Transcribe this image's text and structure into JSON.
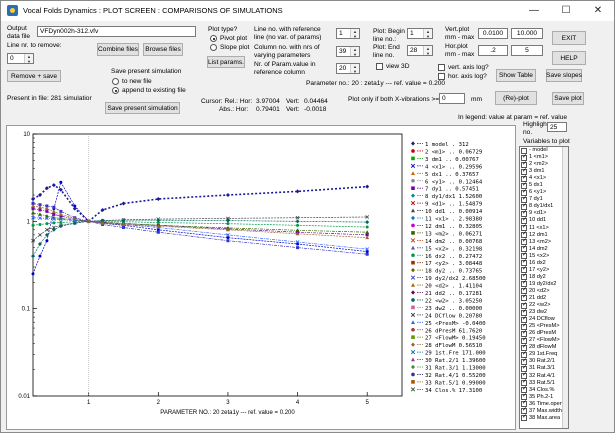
{
  "window": {
    "title": "Vocal Folds Dynamics : PLOT SCREEN : COMPARISONS OF SIMULATIONS"
  },
  "output": {
    "label": "Output data file",
    "value": "VFDyn002h-312.vfv"
  },
  "remove": {
    "label": "Line nr. to remove:",
    "value": "0",
    "button": "Remove + save"
  },
  "present_in_file": "Present in file: 281 simulatior",
  "buttons": {
    "combine": "Combine files",
    "browse": "Browse files",
    "list_params": "List params.",
    "save_present": "Save present simulation",
    "show_table": "Show Table",
    "replot": "(Re)-plot",
    "exit": "EXIT",
    "help": "HELP",
    "save_slopes": "Save slopes",
    "save_plot": "Save plot"
  },
  "save_sim": {
    "label": "Save present simulation",
    "opt1": "to new file",
    "opt2": "append to existing file"
  },
  "plot_type": {
    "label": "Plot type?",
    "opt1": "Pivot plot",
    "opt2": "Slope plot"
  },
  "fields": {
    "line_ref_label": "Line no. with reference line (no var. of params)",
    "line_ref_value": "1",
    "col_nrs_label": "Column no. with nrs of varying parameters",
    "col_nrs_value": "39",
    "nr_param_label": "Nr. of Param.value in reference column",
    "nr_param_value": "20",
    "plot_begin_label": "Plot: Begin line no.:",
    "plot_begin_value": "1",
    "plot_end_label": "Plot: End line no.",
    "plot_end_value": "28",
    "vert_plot_label": "Vert.plot mm - max",
    "vert_min": "0.0100",
    "vert_max": "10.000",
    "hor_plot_label": "Hor.plot mm - max",
    "hor_min": ".2",
    "hor_max": "5",
    "view3d": "view 3D",
    "vert_log": "vert. axis log?",
    "hor_log": "hor. axis log?",
    "plot_only_label": "Plot only if both X-vibrations >=",
    "plot_only_value": "0",
    "plot_only_unit": "mm"
  },
  "param_info": "Parameter no.: 20 : zeta1y   --- ref. value =  0.200",
  "cursor": {
    "rel_label": "Cursor: Rel.: Hor:",
    "rel_hor": "3.97004",
    "rel_vert_label": "Vert:",
    "rel_vert": "0.04464",
    "abs_label": "Abs.: Hor:",
    "abs_hor": "0.79401",
    "abs_vert_label": "Vert:",
    "abs_vert": "-0.0018"
  },
  "legend_note": "In legend: value at param = ref. value",
  "highlight": {
    "label": "Highlight no.",
    "value": "25"
  },
  "vars_label": "Variables to plot",
  "variables": [
    "- model",
    "1 <m1>",
    "2 <m2>",
    "3 dm1",
    "4 <x1>",
    "5 dx1",
    "6 <y1>",
    "7 dy1",
    "8 dy1/dx1",
    "9 <d1>",
    "10 dd1",
    "11 <x1>",
    "12 dm1",
    "13 <m2>",
    "14 dm2",
    "15 <x2>",
    "16 dx2",
    "17 <y2>",
    "18 dy2",
    "19 dy2/dx2",
    "20 <d2>",
    "21 dd2",
    "22 <w2>",
    "23 dw2",
    "24 DCflow",
    "25 <PresM>",
    "26 dPresM",
    "27 <FlowM>",
    "28 dFlowM",
    "29 1st.Freq",
    "30 Rat.2/1",
    "31 Rat.3/1",
    "32 Rat.4/1",
    "33 Rat.5/1",
    "34 Clos.%",
    "35 Ph.2-1",
    "36 Time.open",
    "37 Max.width",
    "38 Max.area"
  ],
  "variables_checked": [
    false,
    true,
    true,
    true,
    true,
    true,
    true,
    true,
    true,
    true,
    true,
    true,
    true,
    true,
    true,
    true,
    true,
    true,
    true,
    true,
    true,
    true,
    true,
    true,
    true,
    true,
    true,
    true,
    true,
    true,
    true,
    true,
    true,
    true,
    true,
    true,
    true,
    true,
    true
  ],
  "legend": [
    "1 model  .   312",
    "2 <m1> .. 0.06729",
    "3 dm1  .. 0.00767",
    "4 <x1> .. 0.29596",
    "5 dx1  .. 0.37657",
    "6 <y1> .. 0.12464",
    "7 dy1  .. 0.57451",
    "8 dy1/dx1 1.52600",
    "9 <d1> .. 1.54879",
    "10 dd1 .. 0.00914",
    "11 <x1> . 2.98380",
    "12 dm1 .. 0.32805",
    "13 <m2> . 0.06271",
    "14 dm2 .. 0.00768",
    "15 <x2> . 0.32198",
    "16 dx2 .. 0.27472",
    "17 <y2> . 3.08448",
    "18 dy2 .. 0.73765",
    "19 dy2/dx2 2.68500",
    "20 <d2> . 1.41104",
    "21 dd2 .. 0.17281",
    "22 <w2> . 3.05250",
    "23 dw2 .. 0.00000",
    "24 DCflow  0.20780",
    "25 <PresM> -0.0400",
    "26 dPresM  61.7620",
    "27 <FlowM> 0.19450",
    "28 dFlowM  0.56510",
    "29 1st.Fre 171.000",
    "30 Rat.2/1 1.39600",
    "31 Rat.3/1 1.13000",
    "32 Rat.4/1 0.55200",
    "33 Rat.5/1 0.99000",
    "34 Clos.%  17.3100"
  ],
  "legend_colors": [
    "#222266",
    "#cc0000",
    "#00aa00",
    "#0000cc",
    "#cc6600",
    "#888888",
    "#7700aa",
    "#008888",
    "#aa0000",
    "#444444",
    "#0077cc",
    "#cc00cc",
    "#336600",
    "#cc3300",
    "#555599",
    "#009944",
    "#993300",
    "#666600",
    "#3333cc",
    "#aa6600",
    "#660066",
    "#006666",
    "#cc6699",
    "#333333",
    "#3366ff",
    "#aa3333",
    "#669900",
    "#996633",
    "#0066aa",
    "#884488",
    "#448844",
    "#333399",
    "#aa5500",
    "#225522"
  ],
  "chart_data": {
    "type": "line",
    "xlabel": "PARAMETER NO.: 20   zeta1y      --- ref. value =    0.200",
    "ylabel": "",
    "x": [
      0.2,
      0.3,
      0.4,
      0.5,
      0.6,
      0.8,
      1.0,
      1.2,
      1.5,
      2.0,
      3.0,
      4.0,
      5.0
    ],
    "x_ticks": [
      "1",
      "2",
      "3",
      "4",
      "5"
    ],
    "y_ticks": [
      "10",
      "1",
      "0.1",
      "0.01"
    ],
    "xlim": [
      0.2,
      5.5
    ],
    "ylim": [
      0.01,
      10
    ],
    "log_y": true,
    "series": [
      {
        "name": "1 model",
        "values": [
          1.8,
          2.0,
          2.4,
          2.6,
          2.3,
          1.4,
          1.0,
          1.35,
          1.6,
          1.8,
          2.0,
          2.2,
          2.5
        ]
      },
      {
        "name": "11 <x1>",
        "values": [
          0.25,
          0.4,
          0.6,
          1.4,
          2.8,
          1.5,
          1.0,
          0.95,
          0.9,
          0.8,
          0.65,
          0.55,
          0.45
        ]
      },
      {
        "name": "3 dm1",
        "values": [
          1.4,
          1.35,
          1.3,
          1.2,
          1.15,
          1.05,
          1.0,
          0.97,
          0.94,
          0.9,
          0.82,
          0.75,
          0.7
        ]
      },
      {
        "name": "7 dy1",
        "values": [
          0.6,
          0.7,
          0.8,
          0.85,
          0.9,
          0.96,
          1.0,
          1.02,
          1.04,
          1.06,
          1.08,
          1.1,
          1.12
        ]
      },
      {
        "name": "20 <d2>",
        "values": [
          1.25,
          1.2,
          1.15,
          1.1,
          1.08,
          1.03,
          1.0,
          0.98,
          0.95,
          0.9,
          0.84,
          0.79,
          0.75
        ]
      },
      {
        "name": "26 dPresM",
        "values": [
          0.9,
          0.92,
          0.94,
          0.96,
          0.97,
          0.99,
          1.0,
          1.0,
          0.99,
          0.97,
          0.94,
          0.9,
          0.86
        ]
      },
      {
        "name": "29 1st.Fre",
        "values": [
          1.6,
          1.55,
          1.5,
          1.45,
          1.3,
          1.1,
          1.0,
          0.92,
          0.85,
          0.75,
          0.6,
          0.5,
          0.42
        ]
      },
      {
        "name": "34 Clos.%",
        "values": [
          0.4,
          0.55,
          0.7,
          0.8,
          0.88,
          0.95,
          1.0,
          1.02,
          1.03,
          1.03,
          1.02,
          1.0,
          0.98
        ]
      },
      {
        "name": "17 <y2>",
        "values": [
          1.1,
          1.09,
          1.08,
          1.06,
          1.05,
          1.02,
          1.0,
          0.96,
          0.92,
          0.85,
          0.7,
          0.58,
          0.48
        ]
      },
      {
        "name": "31 Rat.3/1",
        "values": [
          1.5,
          1.45,
          1.4,
          1.3,
          1.2,
          1.08,
          1.0,
          0.95,
          0.92,
          0.88,
          0.8,
          0.72,
          0.65
        ]
      }
    ]
  }
}
